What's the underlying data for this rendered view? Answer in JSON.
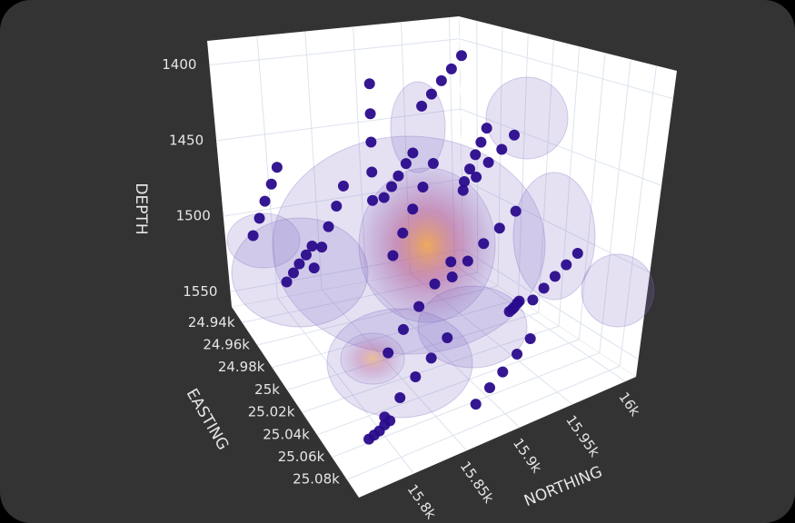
{
  "chart_data": {
    "type": "scatter3d",
    "xlabel": "NORTHING",
    "ylabel": "EASTING",
    "zlabel": "DEPTH",
    "color": "#2a0b8c",
    "x": [
      15850,
      15850,
      15850,
      15850,
      15850,
      15860,
      15870,
      15880,
      15890,
      15900,
      15760,
      15768,
      15775,
      15783,
      15790,
      15820,
      15835,
      15850,
      15865,
      15880,
      15800,
      15815,
      15830,
      15845,
      15860,
      15930,
      15940,
      15950,
      15960,
      15970,
      15900,
      15915,
      15930,
      15945,
      15960,
      15950,
      15963,
      15975,
      15988,
      16000,
      15880,
      15893,
      15905,
      15918,
      15930,
      15800,
      15808,
      15815,
      15823,
      15830,
      15760,
      15768,
      15775,
      15783,
      15790,
      15920,
      15925,
      15930,
      15935,
      15940,
      15880,
      15888,
      15895,
      15903,
      15910,
      15950,
      15960,
      15970,
      15980,
      15990,
      15770,
      15775,
      15780,
      15785,
      15790,
      15990,
      15993,
      15995,
      15998,
      16000
    ],
    "y": [
      24990,
      24990,
      24990,
      24990,
      24990,
      25000,
      25000,
      25000,
      25000,
      25000,
      24950,
      24950,
      24950,
      24950,
      24950,
      25040,
      25040,
      25040,
      25040,
      25040,
      25060,
      25060,
      25060,
      25060,
      25060,
      24960,
      24960,
      24960,
      24960,
      24960,
      25020,
      25020,
      25020,
      25020,
      25020,
      24980,
      24980,
      24980,
      24980,
      24980,
      25070,
      25070,
      25070,
      25070,
      25070,
      24940,
      24940,
      24940,
      24940,
      24940,
      25030,
      25030,
      25030,
      25030,
      25030,
      25010,
      25010,
      25010,
      25010,
      25010,
      24970,
      24970,
      24970,
      24970,
      24970,
      25050,
      25050,
      25050,
      25050,
      25050,
      25080,
      25080,
      25080,
      25080,
      25080,
      24990,
      24990,
      24990,
      24990,
      24990
    ],
    "z": [
      1400,
      1418,
      1435,
      1453,
      1470,
      1500,
      1488,
      1475,
      1463,
      1450,
      1500,
      1490,
      1480,
      1470,
      1460,
      1530,
      1520,
      1510,
      1500,
      1490,
      1550,
      1543,
      1535,
      1528,
      1520,
      1430,
      1423,
      1415,
      1408,
      1400,
      1510,
      1503,
      1495,
      1488,
      1480,
      1480,
      1473,
      1465,
      1458,
      1450,
      1555,
      1549,
      1543,
      1536,
      1530,
      1540,
      1535,
      1530,
      1525,
      1520,
      1480,
      1470,
      1460,
      1450,
      1440,
      1460,
      1453,
      1445,
      1438,
      1430,
      1480,
      1474,
      1468,
      1461,
      1455,
      1520,
      1515,
      1510,
      1505,
      1500,
      1545,
      1544,
      1543,
      1541,
      1540,
      1560,
      1559,
      1558,
      1556,
      1555
    ],
    "xlim": [
      15748,
      16010
    ],
    "ylim": [
      24926,
      25096
    ],
    "zlim": [
      1560,
      1384
    ],
    "xticks": [
      {
        "value": 15800,
        "label": "15.8k"
      },
      {
        "value": 15850,
        "label": "15.85k"
      },
      {
        "value": 15900,
        "label": "15.9k"
      },
      {
        "value": 15950,
        "label": "15.95k"
      },
      {
        "value": 16000,
        "label": "16k"
      }
    ],
    "yticks": [
      {
        "value": 24940,
        "label": "24.94k"
      },
      {
        "value": 24960,
        "label": "24.96k"
      },
      {
        "value": 24980,
        "label": "24.98k"
      },
      {
        "value": 25000,
        "label": "25k"
      },
      {
        "value": 25020,
        "label": "25.02k"
      },
      {
        "value": 25040,
        "label": "25.04k"
      },
      {
        "value": 25060,
        "label": "25.06k"
      },
      {
        "value": 25080,
        "label": "25.08k"
      }
    ],
    "zticks": [
      1400,
      1450,
      1500,
      1550
    ],
    "grid": true
  }
}
